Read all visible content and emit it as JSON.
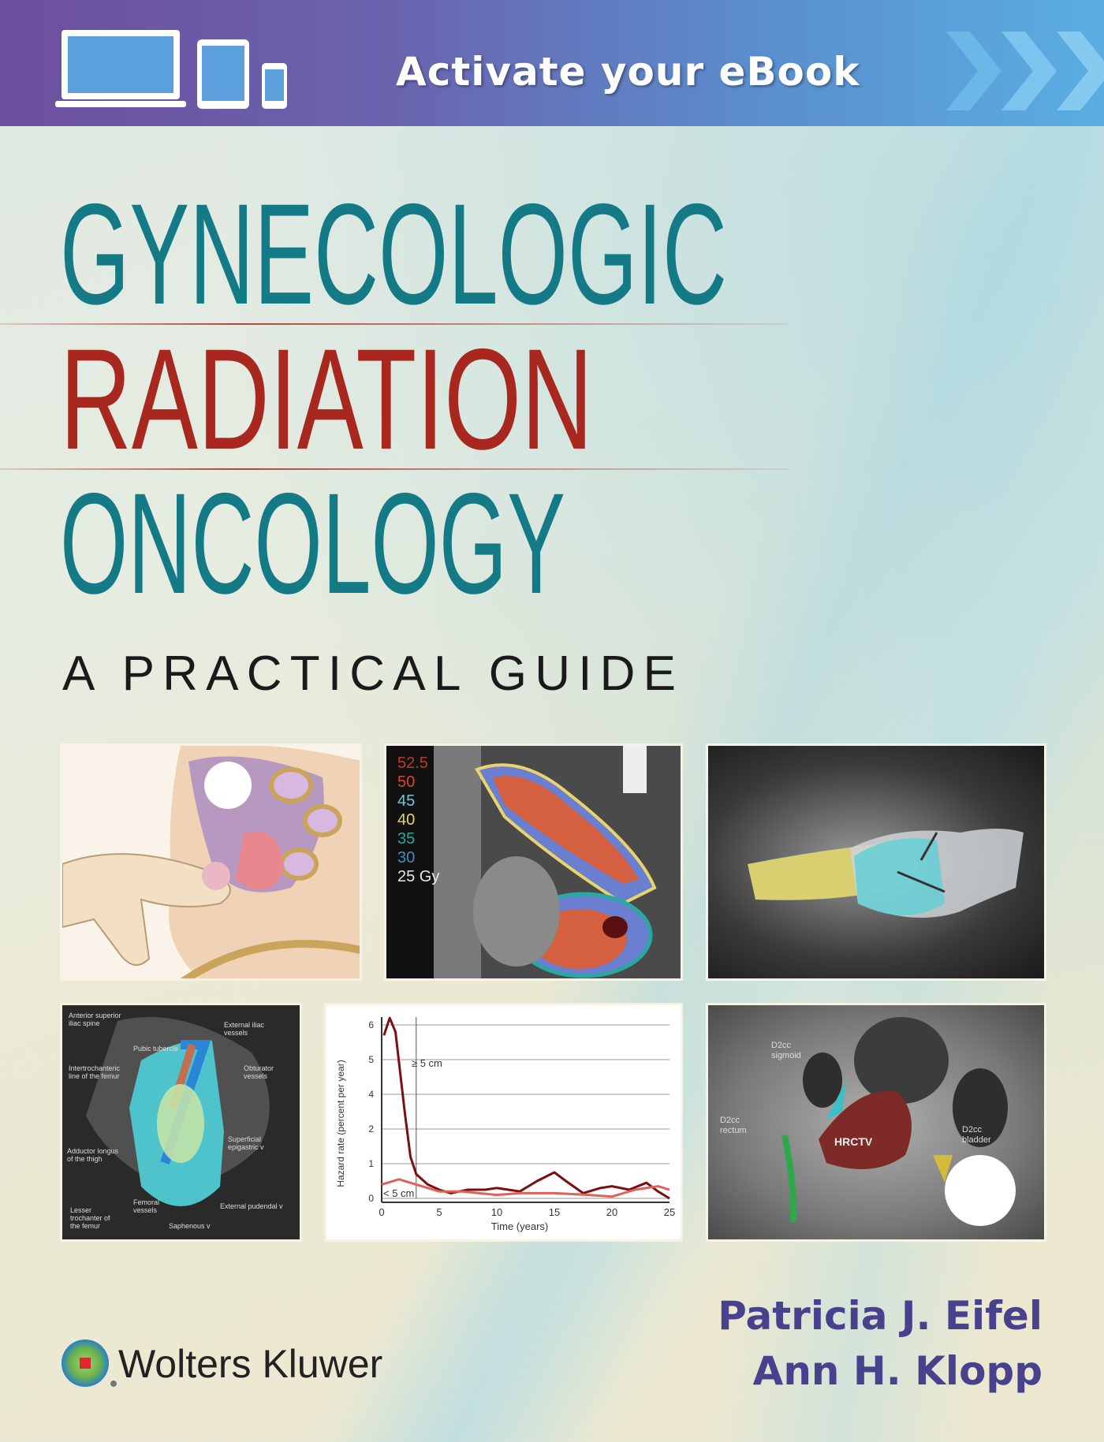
{
  "banner": {
    "text": "Activate your eBook",
    "icons": [
      "laptop-icon",
      "tablet-icon",
      "phone-icon",
      "chevron-right-icon"
    ]
  },
  "title": {
    "line1": "GYNECOLOGIC",
    "line2": "RADIATION",
    "line3": "ONCOLOGY",
    "subtitle": "A PRACTICAL GUIDE",
    "colors": {
      "teal": "#137a86",
      "red": "#a8281f",
      "purple": "#48418e"
    }
  },
  "panels": {
    "dose_map": {
      "legend": [
        "52.5",
        "50",
        "45",
        "40",
        "35",
        "30",
        "25 Gy"
      ],
      "legend_colors": [
        "#c0392b",
        "#d9442f",
        "#6fc6d6",
        "#e6d36a",
        "#27a9a0",
        "#3f8fc0",
        "#e6e6e6"
      ]
    },
    "anatomy": {
      "labels": [
        "Anterior superior iliac spine",
        "Pubic tubercle",
        "External iliac vessels",
        "Intertrochanteric line of the femur",
        "Obturator vessels",
        "Superficial epigastric v",
        "Adductor longus of the thigh",
        "Femoral vessels",
        "External pudendal v",
        "Lesser trochanter of the femur",
        "Saphenous v"
      ]
    },
    "mri": {
      "labels": [
        "HRCTV",
        "D2cc sigmoid",
        "D2cc rectum",
        "D2cc bladder"
      ]
    }
  },
  "chart_data": {
    "type": "line",
    "xlabel": "Time (years)",
    "ylabel": "Hazard rate (percent per year)",
    "xlim": [
      0,
      25
    ],
    "xticks": [
      0,
      5,
      10,
      15,
      20,
      25
    ],
    "yticks": [
      "0",
      "1",
      "2",
      "4",
      "5",
      "6"
    ],
    "grid": true,
    "annotations": [
      "≥ 5 cm",
      "< 5 cm"
    ],
    "vline_x": 3,
    "series": [
      {
        "name": "≥ 5 cm",
        "color": "#7a0f12",
        "x": [
          0.2,
          0.7,
          1.2,
          2,
          2.5,
          3,
          4,
          5,
          6,
          7.5,
          9,
          10,
          12,
          13.5,
          15,
          16,
          17.5,
          19,
          20,
          21.5,
          23,
          24,
          25
        ],
        "y": [
          5.7,
          6.2,
          5.8,
          3.0,
          1.2,
          0.7,
          0.4,
          0.25,
          0.15,
          0.25,
          0.25,
          0.3,
          0.2,
          0.5,
          0.75,
          0.5,
          0.15,
          0.3,
          0.35,
          0.25,
          0.45,
          0.2,
          0.0
        ]
      },
      {
        "name": "< 5 cm",
        "color": "#e0605a",
        "x": [
          0,
          1.5,
          3,
          5,
          7,
          10,
          12,
          15,
          18,
          20,
          22,
          24,
          25
        ],
        "y": [
          0.4,
          0.55,
          0.4,
          0.2,
          0.2,
          0.1,
          0.15,
          0.15,
          0.1,
          0.05,
          0.25,
          0.35,
          0.25
        ]
      }
    ]
  },
  "authors": [
    "Patricia J. Eifel",
    "Ann H. Klopp"
  ],
  "publisher": {
    "name": "Wolters Kluwer"
  }
}
